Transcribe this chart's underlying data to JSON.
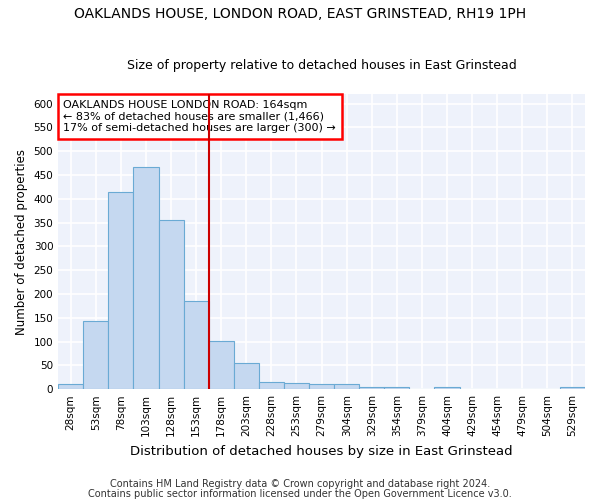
{
  "title": "OAKLANDS HOUSE, LONDON ROAD, EAST GRINSTEAD, RH19 1PH",
  "subtitle": "Size of property relative to detached houses in East Grinstead",
  "xlabel": "Distribution of detached houses by size in East Grinstead",
  "ylabel": "Number of detached properties",
  "bar_color": "#c5d8f0",
  "bar_edge_color": "#6aaad4",
  "background_color": "#eef2fb",
  "grid_color": "#ffffff",
  "categories": [
    "28sqm",
    "53sqm",
    "78sqm",
    "103sqm",
    "128sqm",
    "153sqm",
    "178sqm",
    "203sqm",
    "228sqm",
    "253sqm",
    "279sqm",
    "304sqm",
    "329sqm",
    "354sqm",
    "379sqm",
    "404sqm",
    "429sqm",
    "454sqm",
    "479sqm",
    "504sqm",
    "529sqm"
  ],
  "values": [
    10,
    143,
    415,
    467,
    355,
    185,
    102,
    54,
    16,
    14,
    11,
    10,
    5,
    5,
    0,
    5,
    0,
    0,
    0,
    0,
    5
  ],
  "ylim": [
    0,
    620
  ],
  "yticks": [
    0,
    50,
    100,
    150,
    200,
    250,
    300,
    350,
    400,
    450,
    500,
    550,
    600
  ],
  "annotation_text": "OAKLANDS HOUSE LONDON ROAD: 164sqm\n← 83% of detached houses are smaller (1,466)\n17% of semi-detached houses are larger (300) →",
  "vline_x": 5.5,
  "vline_color": "#cc0000",
  "footnote1": "Contains HM Land Registry data © Crown copyright and database right 2024.",
  "footnote2": "Contains public sector information licensed under the Open Government Licence v3.0.",
  "title_fontsize": 10,
  "subtitle_fontsize": 9,
  "ylabel_fontsize": 8.5,
  "xlabel_fontsize": 9.5,
  "tick_fontsize": 7.5,
  "annot_fontsize": 8,
  "footnote_fontsize": 7
}
